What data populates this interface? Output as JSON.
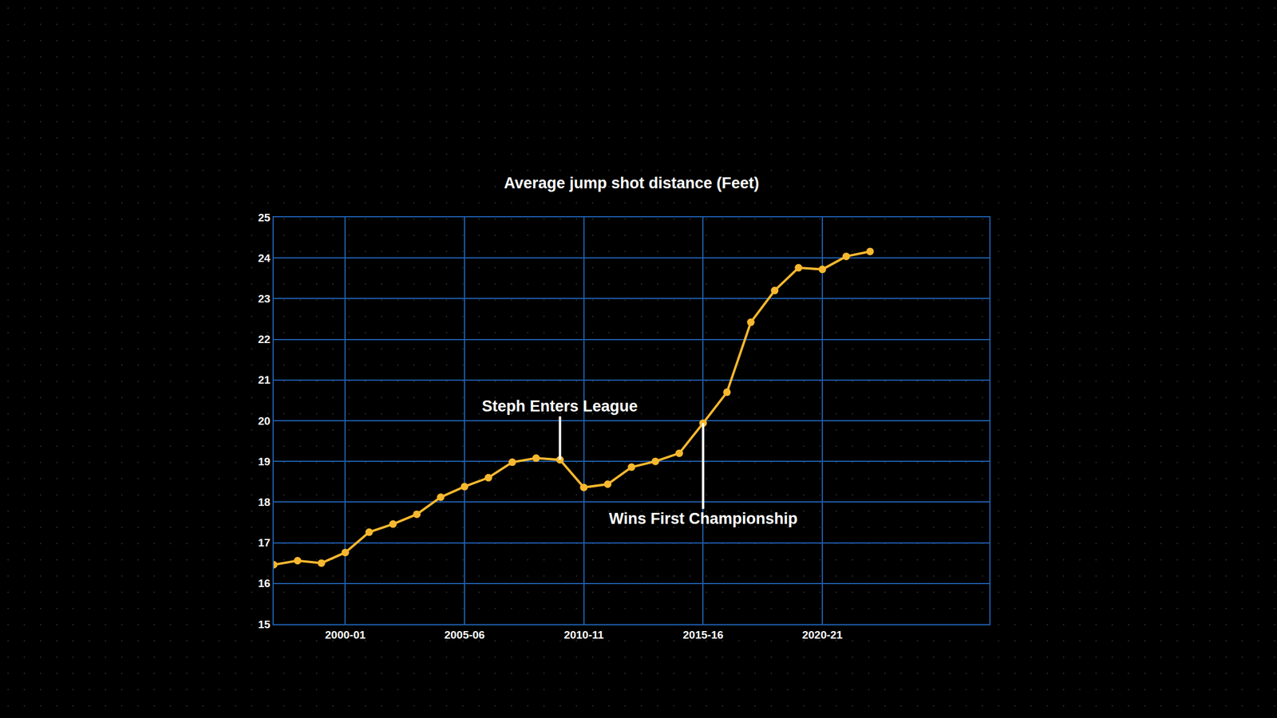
{
  "chart_data": {
    "type": "line",
    "title": "Average jump shot distance (Feet)",
    "categories": [
      null,
      null,
      null,
      "2000-01",
      null,
      null,
      null,
      null,
      "2005-06",
      null,
      null,
      null,
      null,
      "2010-11",
      null,
      null,
      null,
      null,
      "2015-16",
      null,
      null,
      null,
      null,
      "2020-21",
      null,
      null,
      null,
      null,
      null,
      null,
      null
    ],
    "values": [
      16.46,
      16.56,
      16.5,
      16.76,
      17.26,
      17.46,
      17.7,
      18.12,
      18.38,
      18.6,
      18.98,
      19.08,
      19.04,
      18.36,
      18.44,
      18.86,
      19.0,
      19.2,
      19.94,
      20.7,
      22.42,
      23.2,
      23.76,
      23.72,
      24.04,
      24.16,
      null,
      null,
      null,
      null,
      null
    ],
    "color": "#f7b82f",
    "marker": "circle",
    "ylim": [
      15,
      25
    ],
    "yticks": [
      15,
      16,
      17,
      18,
      19,
      20,
      21,
      22,
      23,
      24,
      25
    ],
    "grid": true,
    "annotations": [
      {
        "text": "Steph Enters League",
        "position": 12
      },
      {
        "text": "Wins First Championship",
        "position": 18
      }
    ]
  }
}
